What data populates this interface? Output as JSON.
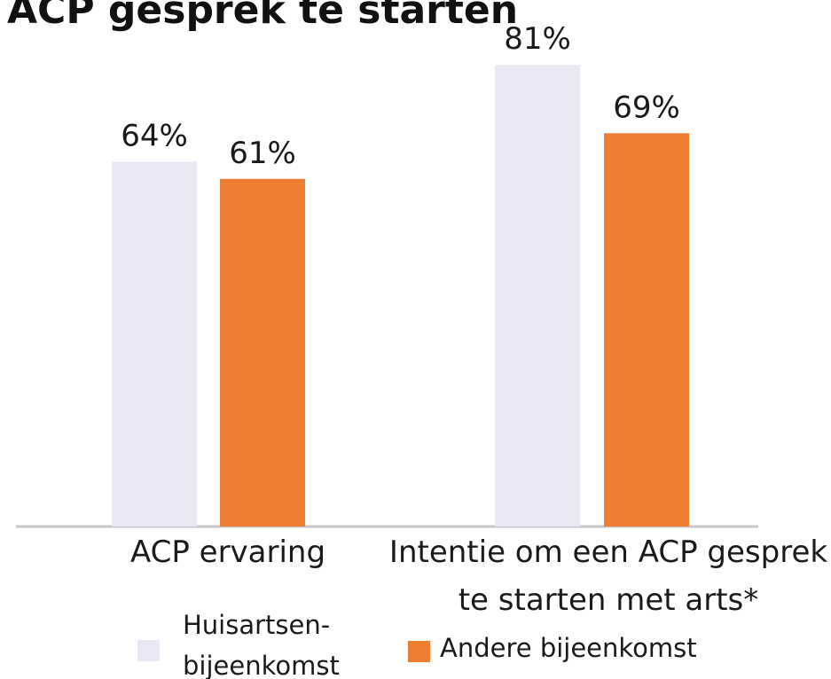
{
  "chart_data": {
    "type": "bar",
    "title": "ACP gesprek te starten",
    "categories": [
      "ACP ervaring",
      "Intentie om een ACP gesprek te starten met arts*"
    ],
    "series": [
      {
        "name": "Huisartsen-bijeenkomst",
        "color": "#e8e8f5",
        "values": [
          64,
          81
        ],
        "value_labels": [
          "64%",
          "81%"
        ]
      },
      {
        "name": "Andere bijeenkomst",
        "color": "#ed7d31",
        "values": [
          61,
          69
        ],
        "value_labels": [
          "61%",
          "69%"
        ]
      }
    ]
  }
}
